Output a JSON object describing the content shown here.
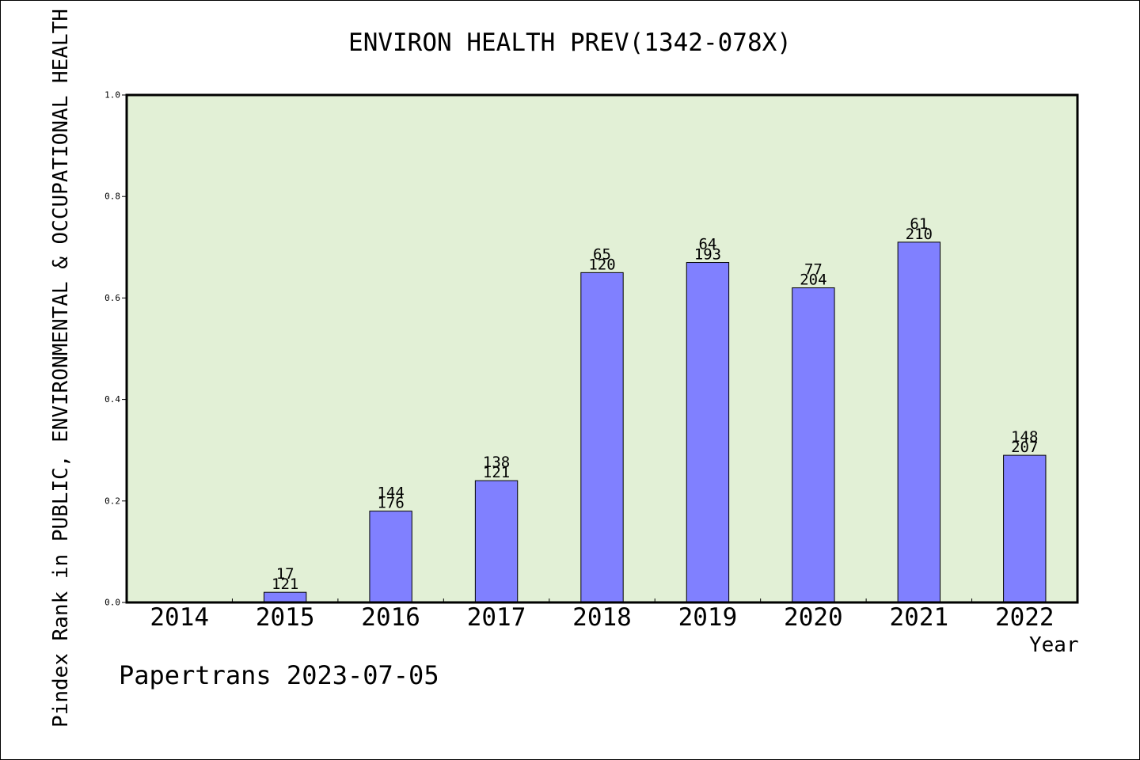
{
  "chart_data": {
    "type": "bar",
    "title": "ENVIRON HEALTH PREV(1342-078X)",
    "xlabel": "Year",
    "ylabel": "Pindex Rank in PUBLIC, ENVIRONMENTAL & OCCUPATIONAL HEALTH",
    "categories": [
      "2014",
      "2015",
      "2016",
      "2017",
      "2018",
      "2019",
      "2020",
      "2021",
      "2022"
    ],
    "values": [
      null,
      0.02,
      0.18,
      0.24,
      0.65,
      0.67,
      0.62,
      0.71,
      0.29
    ],
    "bar_labels_top": [
      "",
      "17",
      "144",
      "138",
      "65",
      "64",
      "77",
      "61",
      "148"
    ],
    "bar_labels_bottom": [
      "",
      "121",
      "176",
      "121",
      "120",
      "193",
      "204",
      "210",
      "207"
    ],
    "ylim": [
      0,
      1
    ],
    "yticks": [
      "0.0",
      "0.2",
      "0.4",
      "0.6",
      "0.8",
      "1.0"
    ],
    "grid": false,
    "colors": {
      "plot_background": "#e2f0d6",
      "bar_fill": "#8080ff",
      "bar_stroke": "#000000"
    }
  },
  "footer": {
    "note": "Papertrans 2023-07-05"
  }
}
